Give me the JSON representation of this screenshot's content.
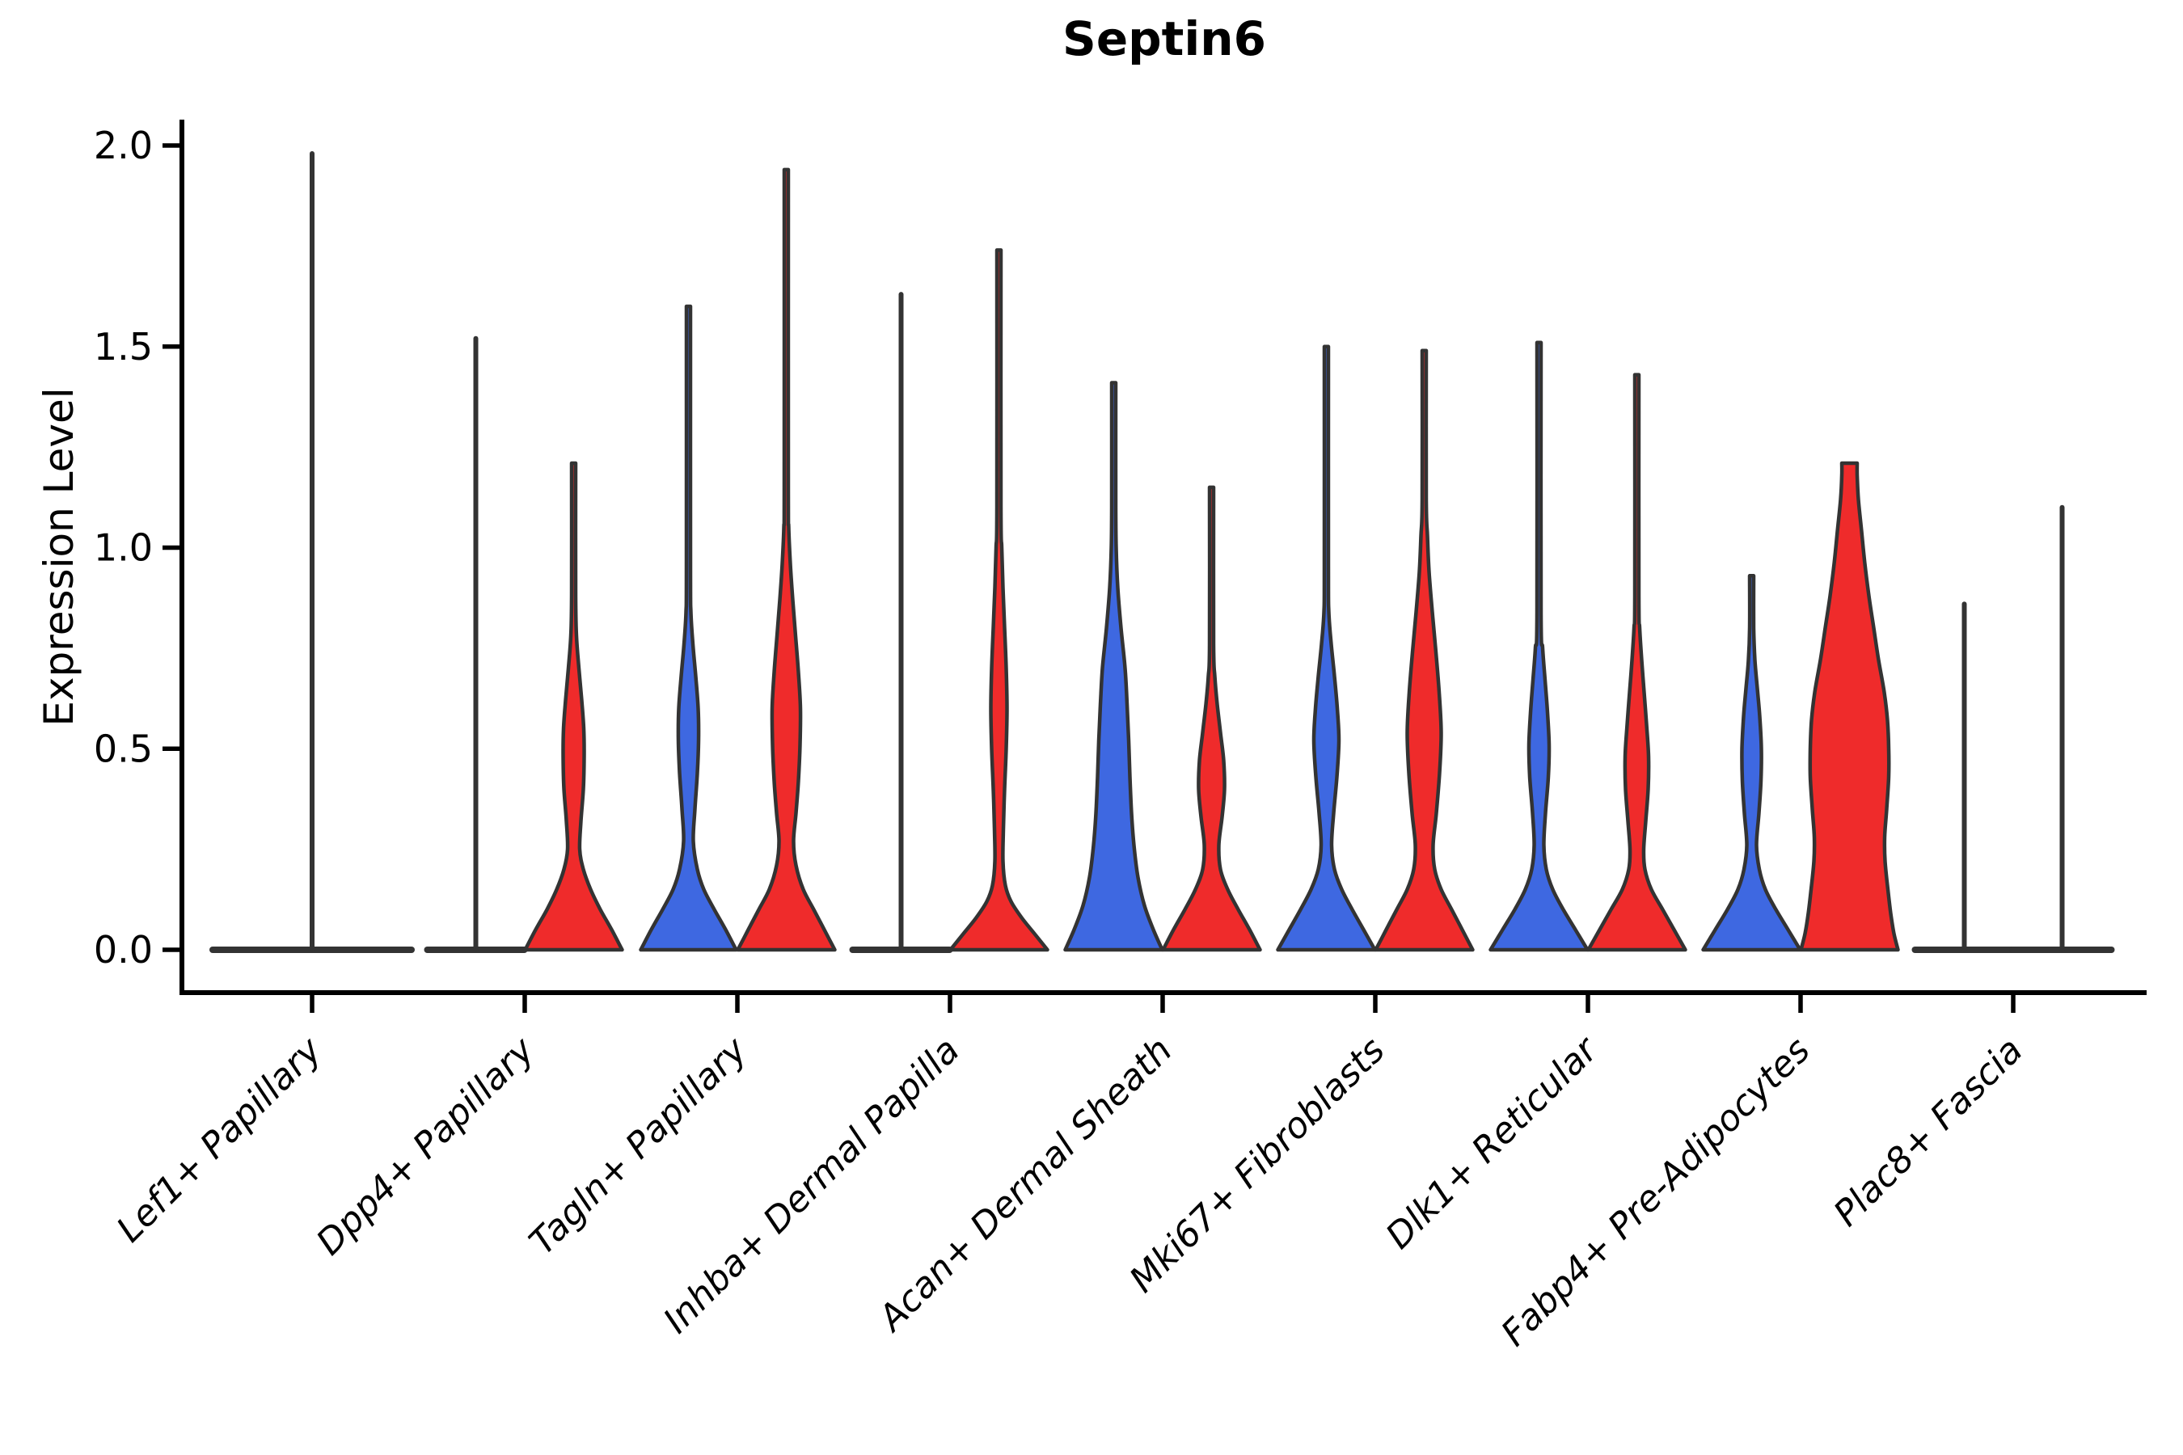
{
  "chart_data": {
    "type": "violin",
    "title": "Septin6",
    "ylabel": "Expression Level",
    "xlabel": "",
    "ylim": [
      0,
      2.05
    ],
    "yticks": [
      0.0,
      0.5,
      1.0,
      1.5,
      2.0
    ],
    "grid": false,
    "legend": null,
    "layout_hints": {
      "xtick_rotation": 45,
      "xtick_style": "italic",
      "split_violins_per_category": 2
    },
    "colors": {
      "split_left": "#3E68E1",
      "split_right": "#EF2B2B",
      "outline": "#333333",
      "axis": "#000000"
    },
    "categories": [
      "Lef1+ Papillary",
      "Dpp4+ Papillary",
      "Tagln+ Papillary",
      "Inhba+ Dermal Papilla",
      "Acan+ Dermal Sheath",
      "Mki67+ Fibroblasts",
      "Dlk1+ Reticular",
      "Fabp4+ Pre-Adipocytes",
      "Plac8+ Fascia"
    ],
    "groups": [
      {
        "category": "Lef1+ Papillary",
        "violins": [
          {
            "split": "merged",
            "fill": "outline",
            "style": "flat",
            "offset": 0,
            "half_width": 123,
            "max_expression": 1.98
          }
        ]
      },
      {
        "category": "Dpp4+ Papillary",
        "violins": [
          {
            "split": "left",
            "fill": "blue",
            "style": "flat",
            "offset": -60.5,
            "half_width": 60,
            "max_expression": 1.52
          },
          {
            "split": "right",
            "fill": "red",
            "style": "shaped",
            "offset": 60.5,
            "max_expression": 1.21,
            "profile": [
              [
                0,
                60
              ],
              [
                0.05,
                47
              ],
              [
                0.1,
                33
              ],
              [
                0.15,
                21
              ],
              [
                0.2,
                12
              ],
              [
                0.25,
                7.5
              ],
              [
                0.32,
                9
              ],
              [
                0.4,
                12
              ],
              [
                0.48,
                13
              ],
              [
                0.55,
                12.5
              ],
              [
                0.62,
                10
              ],
              [
                0.7,
                6.5
              ],
              [
                0.78,
                3.5
              ],
              [
                0.88,
                2.5
              ],
              [
                1.21,
                2.5
              ]
            ]
          }
        ]
      },
      {
        "category": "Tagln+ Papillary",
        "violins": [
          {
            "split": "left",
            "fill": "blue",
            "style": "shaped",
            "offset": -60.5,
            "max_expression": 1.6,
            "profile": [
              [
                0,
                59
              ],
              [
                0.05,
                46
              ],
              [
                0.1,
                32
              ],
              [
                0.15,
                19
              ],
              [
                0.2,
                11
              ],
              [
                0.27,
                6
              ],
              [
                0.35,
                8
              ],
              [
                0.44,
                11
              ],
              [
                0.52,
                12.5
              ],
              [
                0.6,
                12
              ],
              [
                0.68,
                9
              ],
              [
                0.76,
                5.5
              ],
              [
                0.84,
                3
              ],
              [
                0.95,
                2.5
              ],
              [
                1.6,
                2.5
              ]
            ]
          },
          {
            "split": "right",
            "fill": "red",
            "style": "shaped",
            "offset": 60.5,
            "max_expression": 1.94,
            "profile": [
              [
                0,
                60
              ],
              [
                0.05,
                47
              ],
              [
                0.1,
                34
              ],
              [
                0.15,
                21
              ],
              [
                0.21,
                12
              ],
              [
                0.27,
                9
              ],
              [
                0.34,
                12
              ],
              [
                0.42,
                15
              ],
              [
                0.51,
                17
              ],
              [
                0.6,
                17.5
              ],
              [
                0.69,
                15
              ],
              [
                0.78,
                11.5
              ],
              [
                0.87,
                8
              ],
              [
                0.96,
                5
              ],
              [
                1.05,
                3
              ],
              [
                1.15,
                2.5
              ],
              [
                1.94,
                2.5
              ]
            ]
          }
        ]
      },
      {
        "category": "Inhba+ Dermal Papilla",
        "violins": [
          {
            "split": "left",
            "fill": "blue",
            "style": "flat",
            "offset": -60.5,
            "half_width": 60,
            "max_expression": 1.63
          },
          {
            "split": "right",
            "fill": "red",
            "style": "shaped",
            "offset": 60.5,
            "max_expression": 1.74,
            "profile": [
              [
                0,
                60
              ],
              [
                0.04,
                44
              ],
              [
                0.08,
                28
              ],
              [
                0.12,
                15
              ],
              [
                0.16,
                8
              ],
              [
                0.22,
                5
              ],
              [
                0.3,
                5.5
              ],
              [
                0.4,
                7
              ],
              [
                0.5,
                9
              ],
              [
                0.6,
                10
              ],
              [
                0.7,
                9
              ],
              [
                0.8,
                7
              ],
              [
                0.9,
                5
              ],
              [
                1,
                3.5
              ],
              [
                1.1,
                2.5
              ],
              [
                1.74,
                2.5
              ]
            ]
          }
        ]
      },
      {
        "category": "Acan+ Dermal Sheath",
        "violins": [
          {
            "split": "left",
            "fill": "blue",
            "style": "shaped",
            "offset": -60.5,
            "max_expression": 1.41,
            "profile": [
              [
                0,
                60
              ],
              [
                0.05,
                49
              ],
              [
                0.11,
                38
              ],
              [
                0.18,
                30
              ],
              [
                0.26,
                25
              ],
              [
                0.34,
                22
              ],
              [
                0.43,
                20
              ],
              [
                0.52,
                18.5
              ],
              [
                0.61,
                16.5
              ],
              [
                0.7,
                14
              ],
              [
                0.8,
                9
              ],
              [
                0.9,
                5
              ],
              [
                1,
                3
              ],
              [
                1.1,
                2.5
              ],
              [
                1.41,
                2.5
              ]
            ]
          },
          {
            "split": "right",
            "fill": "red",
            "style": "shaped",
            "offset": 60.5,
            "max_expression": 1.15,
            "profile": [
              [
                0,
                60
              ],
              [
                0.05,
                47
              ],
              [
                0.1,
                33
              ],
              [
                0.15,
                20
              ],
              [
                0.2,
                11
              ],
              [
                0.26,
                9
              ],
              [
                0.33,
                13
              ],
              [
                0.4,
                16
              ],
              [
                0.47,
                15
              ],
              [
                0.54,
                11
              ],
              [
                0.61,
                7
              ],
              [
                0.68,
                4
              ],
              [
                0.76,
                2.5
              ],
              [
                1.15,
                2.5
              ]
            ]
          }
        ]
      },
      {
        "category": "Mki67+ Fibroblasts",
        "violins": [
          {
            "split": "left",
            "fill": "blue",
            "style": "shaped",
            "offset": -60.5,
            "max_expression": 1.5,
            "profile": [
              [
                0,
                60
              ],
              [
                0.05,
                46
              ],
              [
                0.1,
                32
              ],
              [
                0.15,
                19
              ],
              [
                0.2,
                10
              ],
              [
                0.26,
                6.5
              ],
              [
                0.34,
                9
              ],
              [
                0.43,
                13
              ],
              [
                0.52,
                15.5
              ],
              [
                0.6,
                13.5
              ],
              [
                0.68,
                10
              ],
              [
                0.76,
                6
              ],
              [
                0.84,
                3
              ],
              [
                0.95,
                2.5
              ],
              [
                1.5,
                2.5
              ]
            ]
          },
          {
            "split": "right",
            "fill": "red",
            "style": "shaped",
            "offset": 60.5,
            "max_expression": 1.49,
            "profile": [
              [
                0,
                60
              ],
              [
                0.05,
                47
              ],
              [
                0.1,
                34
              ],
              [
                0.15,
                21
              ],
              [
                0.2,
                13
              ],
              [
                0.26,
                11
              ],
              [
                0.34,
                15
              ],
              [
                0.44,
                19
              ],
              [
                0.54,
                21
              ],
              [
                0.64,
                18.5
              ],
              [
                0.74,
                14.5
              ],
              [
                0.84,
                10
              ],
              [
                0.94,
                6
              ],
              [
                1.03,
                4
              ],
              [
                1.12,
                2.5
              ],
              [
                1.49,
                2.5
              ]
            ]
          }
        ]
      },
      {
        "category": "Dlk1+ Reticular",
        "violins": [
          {
            "split": "left",
            "fill": "blue",
            "style": "shaped",
            "offset": -60.5,
            "max_expression": 1.51,
            "profile": [
              [
                0,
                60
              ],
              [
                0.05,
                45
              ],
              [
                0.1,
                30
              ],
              [
                0.15,
                17
              ],
              [
                0.2,
                9
              ],
              [
                0.26,
                6
              ],
              [
                0.34,
                8
              ],
              [
                0.43,
                11.5
              ],
              [
                0.51,
                12.5
              ],
              [
                0.59,
                10.5
              ],
              [
                0.67,
                7.5
              ],
              [
                0.75,
                4.5
              ],
              [
                0.84,
                2.5
              ],
              [
                1.51,
                2.5
              ]
            ]
          },
          {
            "split": "right",
            "fill": "red",
            "style": "shaped",
            "offset": 60.5,
            "max_expression": 1.43,
            "profile": [
              [
                0,
                60
              ],
              [
                0.05,
                46
              ],
              [
                0.1,
                32
              ],
              [
                0.15,
                18
              ],
              [
                0.2,
                10
              ],
              [
                0.25,
                8.5
              ],
              [
                0.32,
                11
              ],
              [
                0.4,
                14
              ],
              [
                0.48,
                14.5
              ],
              [
                0.56,
                12
              ],
              [
                0.64,
                9
              ],
              [
                0.72,
                6
              ],
              [
                0.8,
                3.5
              ],
              [
                0.88,
                2.5
              ],
              [
                1.43,
                2.5
              ]
            ]
          }
        ]
      },
      {
        "category": "Fabp4+ Pre-Adipocytes",
        "violins": [
          {
            "split": "left",
            "fill": "blue",
            "style": "shaped",
            "offset": -60.5,
            "max_expression": 0.93,
            "profile": [
              [
                0,
                60
              ],
              [
                0.05,
                45
              ],
              [
                0.1,
                30
              ],
              [
                0.15,
                17
              ],
              [
                0.2,
                9.5
              ],
              [
                0.26,
                6
              ],
              [
                0.34,
                9
              ],
              [
                0.42,
                11.5
              ],
              [
                0.5,
                12
              ],
              [
                0.58,
                10
              ],
              [
                0.65,
                7
              ],
              [
                0.72,
                4
              ],
              [
                0.8,
                2.5
              ],
              [
                0.93,
                2.5
              ]
            ]
          },
          {
            "split": "right",
            "fill": "red",
            "style": "shaped",
            "offset": 60.5,
            "max_expression": 1.21,
            "truncated_top": true,
            "profile": [
              [
                0,
                60
              ],
              [
                0.04,
                55
              ],
              [
                0.09,
                51
              ],
              [
                0.15,
                47.5
              ],
              [
                0.22,
                44
              ],
              [
                0.28,
                43.5
              ],
              [
                0.35,
                46
              ],
              [
                0.43,
                48.5
              ],
              [
                0.5,
                48.5
              ],
              [
                0.57,
                47
              ],
              [
                0.64,
                43
              ],
              [
                0.72,
                36
              ],
              [
                0.8,
                30
              ],
              [
                0.88,
                24
              ],
              [
                0.96,
                19
              ],
              [
                1.04,
                15
              ],
              [
                1.12,
                11
              ],
              [
                1.18,
                9.5
              ],
              [
                1.21,
                9.5
              ]
            ]
          }
        ]
      },
      {
        "category": "Plac8+ Fascia",
        "violins": [
          {
            "split": "left",
            "fill": "blue",
            "style": "flat",
            "offset": -60.5,
            "half_width": 61,
            "max_expression": 0.86
          },
          {
            "split": "right",
            "fill": "red",
            "style": "flat",
            "offset": 60.5,
            "half_width": 61,
            "max_expression": 1.1
          }
        ]
      }
    ]
  }
}
